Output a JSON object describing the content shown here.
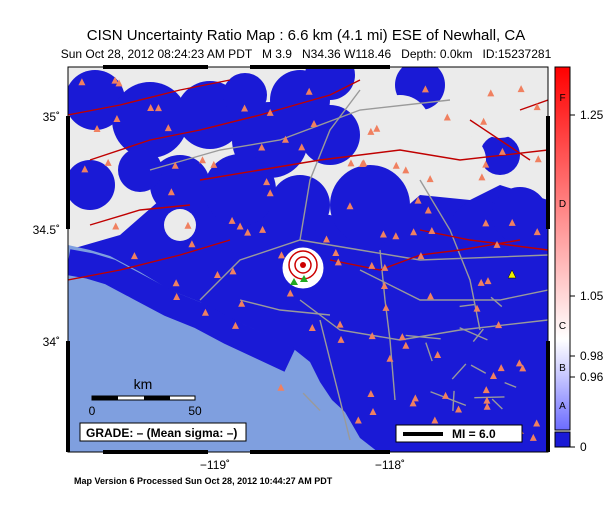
{
  "header": {
    "title": "CISN Uncertainty Ratio Map : 6.6 km (4.1 mi) ESE of Newhall, CA",
    "subtitle": "Sun Oct 28, 2012 08:24:23 AM PDT   M 3.9   N34.36 W118.46   Depth: 0.0km   ID:15237281"
  },
  "map": {
    "lat_labels": [
      "35˚",
      "34.5˚",
      "34˚"
    ],
    "lon_labels": [
      "−119˚",
      "−118˚"
    ],
    "scale": {
      "unit": "km",
      "start": "0",
      "end": "50"
    },
    "grade": "GRADE: – (Mean sigma: –)",
    "mi_legend": "MI = 6.0"
  },
  "colorbar": {
    "ticks": [
      "1.25",
      "1.05",
      "0.98",
      "0.96",
      "0"
    ],
    "grades": [
      "F",
      "D",
      "C",
      "B",
      "A"
    ]
  },
  "footer": "Map Version 6 Processed Sun Oct 28, 2012 10:44:27 AM PDT"
}
